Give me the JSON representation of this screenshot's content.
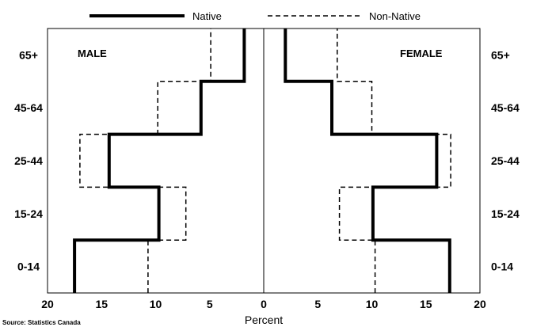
{
  "chart_data": {
    "type": "bar",
    "subtype": "population-pyramid-step",
    "categories": [
      "0-14",
      "15-24",
      "25-44",
      "45-64",
      "65+"
    ],
    "xlabel": "Percent",
    "x_ticks": [
      "20",
      "15",
      "10",
      "5",
      "0",
      "5",
      "10",
      "15",
      "20"
    ],
    "xlim": [
      0,
      20
    ],
    "panels": {
      "left": "MALE",
      "right": "FEMALE"
    },
    "legend": {
      "position": "top",
      "entries": [
        "Native",
        "Non-Native"
      ]
    },
    "grid": false,
    "series": [
      {
        "name": "Native",
        "style": "solid",
        "male": [
          17.5,
          9.7,
          14.3,
          5.8,
          1.8
        ],
        "female": [
          17.2,
          10.1,
          16.0,
          6.3,
          2.0
        ]
      },
      {
        "name": "Non-Native",
        "style": "dashed",
        "male": [
          10.7,
          7.2,
          17.0,
          9.8,
          4.9
        ],
        "female": [
          10.3,
          7.0,
          17.3,
          10.0,
          6.8
        ]
      }
    ],
    "source": "Source: Statistics Canada"
  },
  "colors": {
    "line": "#000000",
    "background": "#ffffff"
  }
}
